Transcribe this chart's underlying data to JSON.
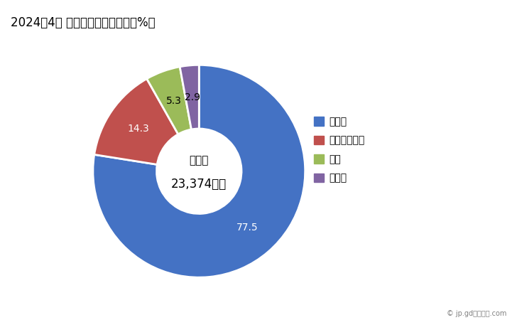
{
  "title": "2024年4月 輸出相手国のシェア（%）",
  "labels": [
    "インド",
    "インドネシア",
    "中国",
    "その他"
  ],
  "values": [
    77.5,
    14.3,
    5.3,
    2.9
  ],
  "colors": [
    "#4472C4",
    "#C0504D",
    "#9BBB59",
    "#8064A2"
  ],
  "center_text_line1": "総　額",
  "center_text_line2": "23,374万円",
  "legend_labels": [
    "インド",
    "インドネシア",
    "中国",
    "その他"
  ],
  "background_color": "#ffffff",
  "watermark": "© jp.gdフリーク.com",
  "label_colors": [
    "white",
    "white",
    "black",
    "black"
  ]
}
